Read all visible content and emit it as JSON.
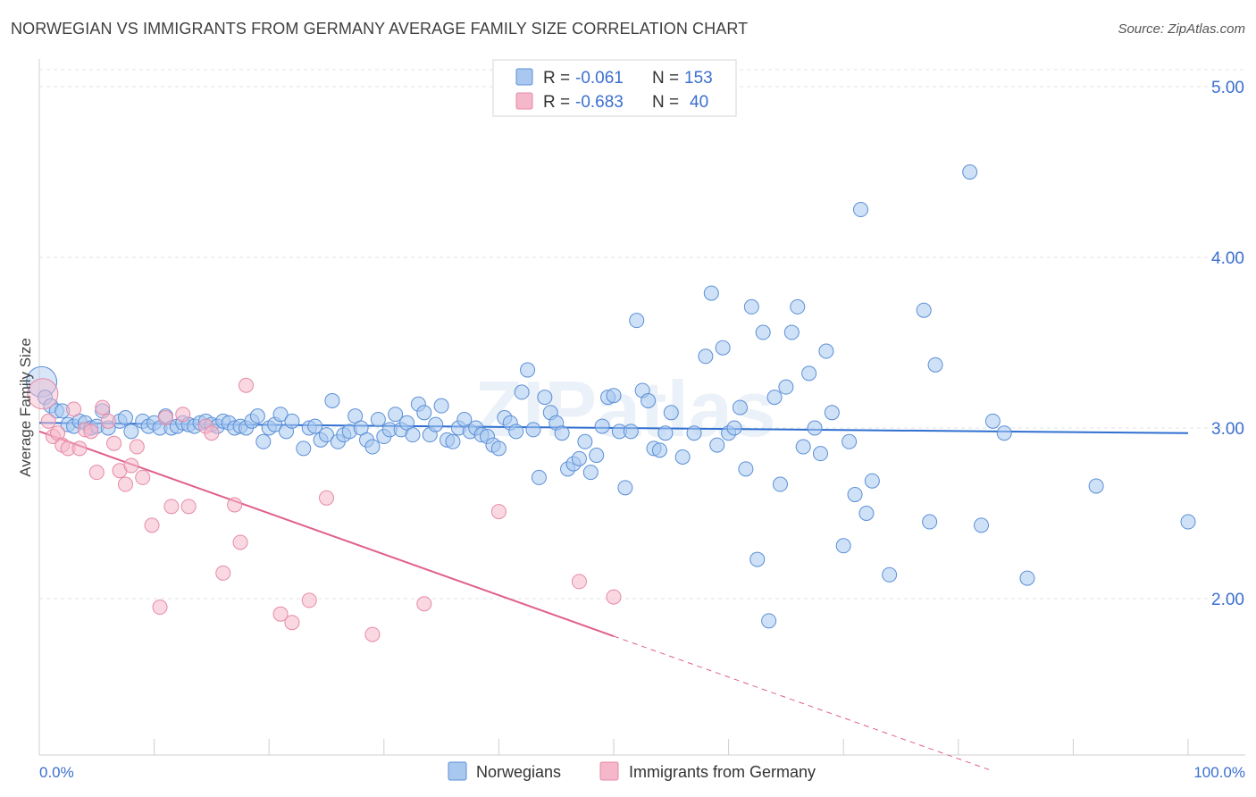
{
  "title": "NORWEGIAN VS IMMIGRANTS FROM GERMANY AVERAGE FAMILY SIZE CORRELATION CHART",
  "source": "Source: ZipAtlas.com",
  "watermark": "ZIPatlas",
  "colors": {
    "norwegians_fill": "#a8c8f0",
    "norwegians_stroke": "#5b8fd6",
    "norwegians_line": "#2f6fd0",
    "germany_fill": "#f5b8cb",
    "germany_stroke": "#e58aa6",
    "germany_line": "#e0608a",
    "axis_text": "#3a6fcf",
    "grid": "#e3e3e3"
  },
  "legend": {
    "rows": [
      {
        "r_label": "R =",
        "r_value": "-0.061",
        "n_label": "N =",
        "n_value": "153"
      },
      {
        "r_label": "R =",
        "r_value": "-0.683",
        "n_label": "N =",
        "n_value": "40"
      }
    ]
  },
  "chart_data": {
    "type": "scatter",
    "title": "NORWEGIAN VS IMMIGRANTS FROM GERMANY AVERAGE FAMILY SIZE CORRELATION CHART",
    "xlabel": "",
    "ylabel": "Average Family Size",
    "xlim": [
      0,
      100
    ],
    "ylim": [
      1.0,
      5.1
    ],
    "x_tick_labels": [
      "0.0%",
      "100.0%"
    ],
    "y_ticks": [
      2.0,
      3.0,
      4.0,
      5.0
    ],
    "y_tick_labels": [
      "2.00",
      "3.00",
      "4.00",
      "5.00"
    ],
    "grid": "horizontal dashed",
    "legend_position": "top-center",
    "series": [
      {
        "name": "Norwegians",
        "trend": {
          "x": [
            0,
            100
          ],
          "y": [
            3.03,
            2.97
          ]
        },
        "points": [
          [
            0.2,
            3.27
          ],
          [
            0.5,
            3.18
          ],
          [
            1.0,
            3.13
          ],
          [
            1.5,
            3.1
          ],
          [
            2.0,
            3.1
          ],
          [
            2.5,
            3.02
          ],
          [
            3.0,
            3.01
          ],
          [
            3.5,
            3.04
          ],
          [
            4.0,
            3.03
          ],
          [
            4.5,
            3.0
          ],
          [
            5.0,
            3.01
          ],
          [
            5.5,
            3.1
          ],
          [
            6.0,
            3.0
          ],
          [
            7.0,
            3.04
          ],
          [
            7.5,
            3.06
          ],
          [
            8.0,
            2.98
          ],
          [
            9.0,
            3.04
          ],
          [
            9.5,
            3.01
          ],
          [
            10.0,
            3.03
          ],
          [
            10.5,
            3.0
          ],
          [
            11.0,
            3.07
          ],
          [
            11.5,
            3.0
          ],
          [
            12.0,
            3.01
          ],
          [
            12.5,
            3.03
          ],
          [
            13.0,
            3.02
          ],
          [
            13.5,
            3.01
          ],
          [
            14.0,
            3.03
          ],
          [
            14.5,
            3.04
          ],
          [
            15.0,
            3.02
          ],
          [
            15.5,
            3.01
          ],
          [
            16.0,
            3.04
          ],
          [
            16.5,
            3.03
          ],
          [
            17.0,
            3.0
          ],
          [
            17.5,
            3.01
          ],
          [
            18.0,
            3.0
          ],
          [
            18.5,
            3.04
          ],
          [
            19.0,
            3.07
          ],
          [
            19.5,
            2.92
          ],
          [
            20.0,
            3.0
          ],
          [
            20.5,
            3.02
          ],
          [
            21.0,
            3.08
          ],
          [
            21.5,
            2.98
          ],
          [
            22.0,
            3.04
          ],
          [
            23.0,
            2.88
          ],
          [
            23.5,
            3.0
          ],
          [
            24.0,
            3.01
          ],
          [
            24.5,
            2.93
          ],
          [
            25.0,
            2.96
          ],
          [
            25.5,
            3.16
          ],
          [
            26.0,
            2.92
          ],
          [
            26.5,
            2.96
          ],
          [
            27.0,
            2.98
          ],
          [
            27.5,
            3.07
          ],
          [
            28.0,
            3.0
          ],
          [
            28.5,
            2.93
          ],
          [
            29.0,
            2.89
          ],
          [
            29.5,
            3.05
          ],
          [
            30.0,
            2.95
          ],
          [
            30.5,
            2.99
          ],
          [
            31.0,
            3.08
          ],
          [
            31.5,
            2.99
          ],
          [
            32.0,
            3.03
          ],
          [
            32.5,
            2.96
          ],
          [
            33.0,
            3.14
          ],
          [
            33.5,
            3.09
          ],
          [
            34.0,
            2.96
          ],
          [
            34.5,
            3.02
          ],
          [
            35.0,
            3.13
          ],
          [
            35.5,
            2.93
          ],
          [
            36.0,
            2.92
          ],
          [
            36.5,
            3.0
          ],
          [
            37.0,
            3.05
          ],
          [
            37.5,
            2.98
          ],
          [
            38.0,
            3.0
          ],
          [
            38.5,
            2.96
          ],
          [
            39.0,
            2.95
          ],
          [
            39.5,
            2.9
          ],
          [
            40.0,
            2.88
          ],
          [
            40.5,
            3.06
          ],
          [
            41.0,
            3.03
          ],
          [
            41.5,
            2.98
          ],
          [
            42.0,
            3.21
          ],
          [
            42.5,
            3.34
          ],
          [
            43.0,
            2.99
          ],
          [
            43.5,
            2.71
          ],
          [
            44.0,
            3.18
          ],
          [
            44.5,
            3.09
          ],
          [
            45.0,
            3.03
          ],
          [
            45.5,
            2.97
          ],
          [
            46.0,
            2.76
          ],
          [
            46.5,
            2.79
          ],
          [
            47.0,
            2.82
          ],
          [
            47.5,
            2.92
          ],
          [
            48.0,
            2.74
          ],
          [
            48.5,
            2.84
          ],
          [
            49.0,
            3.01
          ],
          [
            49.5,
            3.18
          ],
          [
            50.0,
            3.19
          ],
          [
            50.5,
            2.98
          ],
          [
            51.0,
            2.65
          ],
          [
            51.5,
            2.98
          ],
          [
            52.0,
            3.63
          ],
          [
            52.5,
            3.22
          ],
          [
            53.0,
            3.16
          ],
          [
            53.5,
            2.88
          ],
          [
            54.0,
            2.87
          ],
          [
            54.5,
            2.97
          ],
          [
            55.0,
            3.09
          ],
          [
            56.0,
            2.83
          ],
          [
            57.0,
            2.97
          ],
          [
            58.0,
            3.42
          ],
          [
            58.5,
            3.79
          ],
          [
            59.0,
            2.9
          ],
          [
            59.5,
            3.47
          ],
          [
            60.0,
            2.97
          ],
          [
            60.5,
            3.0
          ],
          [
            61.0,
            3.12
          ],
          [
            61.5,
            2.76
          ],
          [
            62.0,
            3.71
          ],
          [
            62.5,
            2.23
          ],
          [
            63.0,
            3.56
          ],
          [
            63.5,
            1.87
          ],
          [
            64.0,
            3.18
          ],
          [
            64.5,
            2.67
          ],
          [
            65.0,
            3.24
          ],
          [
            65.5,
            3.56
          ],
          [
            66.0,
            3.71
          ],
          [
            66.5,
            2.89
          ],
          [
            67.0,
            3.32
          ],
          [
            67.5,
            3.0
          ],
          [
            68.0,
            2.85
          ],
          [
            68.5,
            3.45
          ],
          [
            69.0,
            3.09
          ],
          [
            70.0,
            2.31
          ],
          [
            70.5,
            2.92
          ],
          [
            71.0,
            2.61
          ],
          [
            71.5,
            4.28
          ],
          [
            72.0,
            2.5
          ],
          [
            72.5,
            2.69
          ],
          [
            74.0,
            2.14
          ],
          [
            77.0,
            3.69
          ],
          [
            77.5,
            2.45
          ],
          [
            78.0,
            3.37
          ],
          [
            81.0,
            4.5
          ],
          [
            82.0,
            2.43
          ],
          [
            83.0,
            3.04
          ],
          [
            84.0,
            2.97
          ],
          [
            86.0,
            2.12
          ],
          [
            92.0,
            2.66
          ],
          [
            100.0,
            2.45
          ]
        ]
      },
      {
        "name": "Immigrants from Germany",
        "trend": {
          "x": [
            0,
            50
          ],
          "y": [
            2.98,
            1.78
          ],
          "extended": {
            "x": [
              50,
              83
            ],
            "y": [
              1.78,
              0.99
            ]
          }
        },
        "points": [
          [
            0.3,
            3.2
          ],
          [
            0.8,
            3.04
          ],
          [
            1.2,
            2.95
          ],
          [
            1.6,
            2.97
          ],
          [
            2.0,
            2.9
          ],
          [
            2.5,
            2.88
          ],
          [
            3.0,
            3.11
          ],
          [
            3.5,
            2.88
          ],
          [
            4.0,
            2.99
          ],
          [
            4.5,
            2.98
          ],
          [
            5.0,
            2.74
          ],
          [
            5.5,
            3.12
          ],
          [
            6.0,
            3.04
          ],
          [
            6.5,
            2.91
          ],
          [
            7.0,
            2.75
          ],
          [
            7.5,
            2.67
          ],
          [
            8.0,
            2.78
          ],
          [
            8.5,
            2.89
          ],
          [
            9.0,
            2.71
          ],
          [
            9.8,
            2.43
          ],
          [
            10.5,
            1.95
          ],
          [
            11.0,
            3.06
          ],
          [
            11.5,
            2.54
          ],
          [
            12.5,
            3.08
          ],
          [
            13.0,
            2.54
          ],
          [
            14.5,
            3.01
          ],
          [
            15.0,
            2.97
          ],
          [
            16.0,
            2.15
          ],
          [
            17.0,
            2.55
          ],
          [
            17.5,
            2.33
          ],
          [
            18.0,
            3.25
          ],
          [
            21.0,
            1.91
          ],
          [
            22.0,
            1.86
          ],
          [
            23.5,
            1.99
          ],
          [
            25.0,
            2.59
          ],
          [
            29.0,
            1.79
          ],
          [
            33.5,
            1.97
          ],
          [
            40.0,
            2.51
          ],
          [
            47.0,
            2.1
          ],
          [
            50.0,
            2.01
          ]
        ]
      }
    ]
  }
}
